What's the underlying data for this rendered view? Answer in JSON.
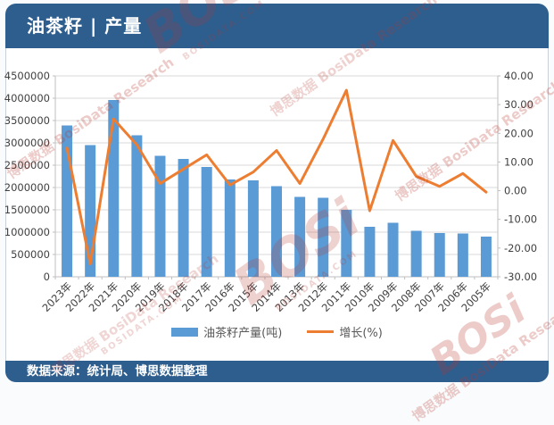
{
  "header": {
    "title": "油茶籽 | 产量",
    "background": "#2e5e8e"
  },
  "logo": {
    "brand": "BOSi",
    "domain": "BOSIDATA.COM",
    "accent": "#c0272d"
  },
  "footer": {
    "text": "数据来源：统计局、博思数据整理"
  },
  "watermark": {
    "brand": "BOSi",
    "caption": "博思数据 BosiData Research",
    "domain": "BOSIDATA.COM",
    "color": "#b5352c"
  },
  "chart_data": {
    "type": "combo-bar-line",
    "title": "油茶籽 | 产量",
    "xlabel": "",
    "ylabel_left": "",
    "ylabel_right": "",
    "categories": [
      "2023年",
      "2022年",
      "2021年",
      "2020年",
      "2019年",
      "2018年",
      "2017年",
      "2016年",
      "2015年",
      "2014年",
      "2013年",
      "2012年",
      "2011年",
      "2010年",
      "2009年",
      "2008年",
      "2007年",
      "2006年",
      "2005年"
    ],
    "series": [
      {
        "name": "油茶籽产量(吨)",
        "type": "bar",
        "yaxis": "left",
        "color": "#5b9bd5",
        "values": [
          3390000,
          2950000,
          3960000,
          3170000,
          2710000,
          2640000,
          2460000,
          2180000,
          2160000,
          2030000,
          1790000,
          1770000,
          1500000,
          1120000,
          1210000,
          1030000,
          980000,
          970000,
          900000
        ]
      },
      {
        "name": "增长(%)",
        "type": "line",
        "yaxis": "right",
        "color": "#ed7d31",
        "values": [
          14.9,
          -25.5,
          25.0,
          16.0,
          2.5,
          7.5,
          12.5,
          2.0,
          6.5,
          14.0,
          2.5,
          18.0,
          35.0,
          -7.0,
          17.5,
          5.0,
          1.5,
          6.0,
          -0.5
        ]
      }
    ],
    "left_axis": {
      "min": 0,
      "max": 4500000,
      "step": 500000,
      "ticks": [
        "0",
        "500000",
        "1000000",
        "1500000",
        "2000000",
        "2500000",
        "3000000",
        "3500000",
        "4000000",
        "4500000"
      ]
    },
    "right_axis": {
      "min": -30,
      "max": 40,
      "step": 10,
      "ticks": [
        "-30.00",
        "-20.00",
        "-10.00",
        "0.00",
        "10.00",
        "20.00",
        "30.00",
        "40.00"
      ]
    },
    "grid": true,
    "grid_color": "#d9d9d9",
    "axis_color": "#bfbfbf",
    "legend_position": "bottom"
  }
}
